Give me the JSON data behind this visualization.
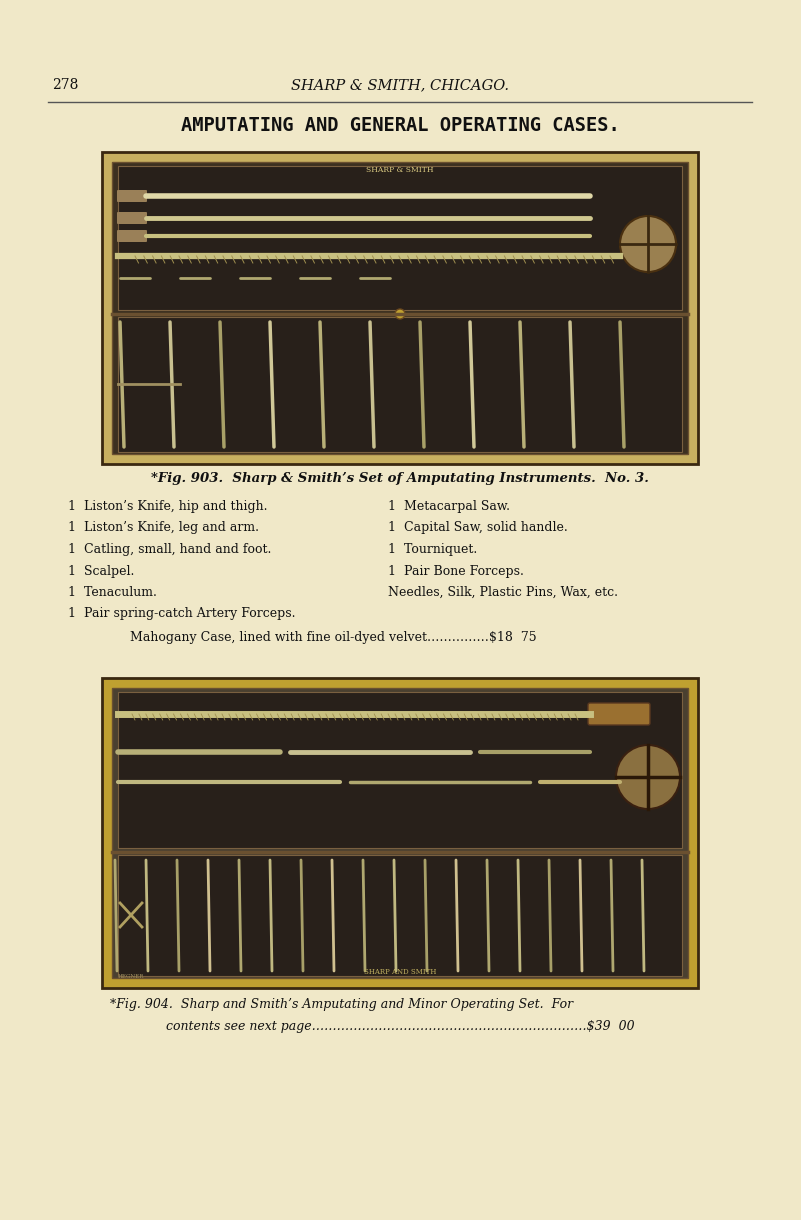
{
  "bg_color": "#f0e8c8",
  "page_number": "278",
  "header_text": "SHARP & SMITH, CHICAGO.",
  "main_title": "AMPUTATING AND GENERAL OPERATING CASES.",
  "fig903_caption": "*Fig. 903.  Sharp & Smith’s Set of Amputating Instruments.  No. 3.",
  "fig903_left_items": [
    "1  Liston’s Knife, hip and thigh.",
    "1  Liston’s Knife, leg and arm.",
    "1  Catling, small, hand and foot.",
    "1  Scalpel.",
    "1  Tenaculum.",
    "1  Pair spring-catch Artery Forceps."
  ],
  "fig903_right_items": [
    "1  Metacarpal Saw.",
    "1  Capital Saw, solid handle.",
    "1  Tourniquet.",
    "1  Pair Bone Forceps.",
    "Needles, Silk, Plastic Pins, Wax, etc."
  ],
  "fig903_price_line": "Mahogany Case, lined with fine oil-dyed velvet……………$18  75",
  "fig904_caption1": "*Fig. 904.  Sharp and Smith’s Amputating and Minor Operating Set.  For",
  "fig904_caption2": "contents see next page…………………………………………………………$39  00",
  "text_color": "#111111",
  "line_color": "#555555",
  "wood_color": "#c8a840",
  "interior_color": "#2c2418",
  "instrument_light": "#d0c890",
  "instrument_mid": "#b8a860"
}
